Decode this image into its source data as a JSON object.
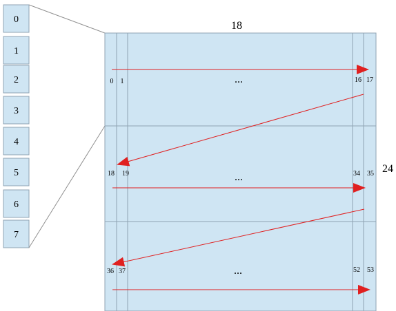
{
  "index_column": {
    "cells": [
      "0",
      "1",
      "2",
      "3",
      "4",
      "5",
      "6",
      "7"
    ]
  },
  "grid": {
    "width_label": "18",
    "height_label": "24",
    "bands": [
      {
        "left_indices": [
          "0",
          "1"
        ],
        "right_indices": [
          "16",
          "17"
        ],
        "ellipsis": "..."
      },
      {
        "left_indices": [
          "18",
          "19"
        ],
        "right_indices": [
          "34",
          "35"
        ],
        "ellipsis": "..."
      },
      {
        "left_indices": [
          "36",
          "37"
        ],
        "right_indices": [
          "52",
          "53"
        ],
        "ellipsis": "..."
      }
    ]
  },
  "colors": {
    "cell_fill": "#cfe5f3",
    "cell_stroke": "#8fa3b3",
    "arrow": "#e02020",
    "connector": "#909090"
  }
}
